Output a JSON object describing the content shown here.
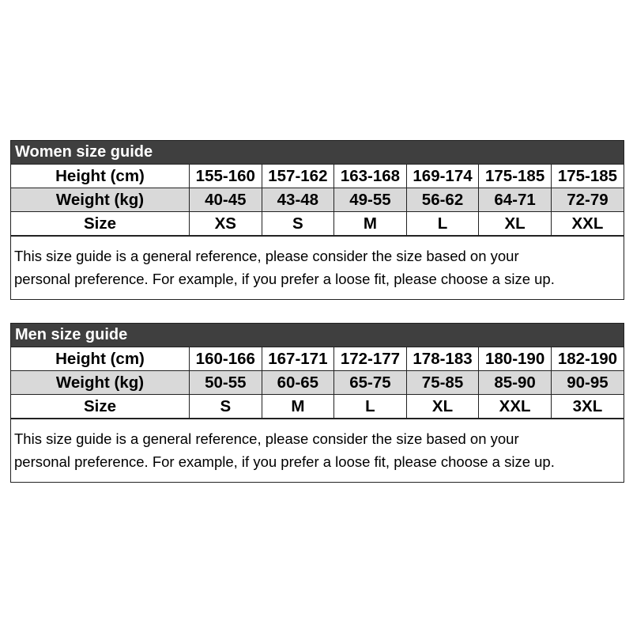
{
  "women": {
    "title": "Women size guide",
    "rows": [
      {
        "label": "Height (cm)",
        "values": [
          "155-160",
          "157-162",
          "163-168",
          "169-174",
          "175-185",
          "175-185"
        ]
      },
      {
        "label": "Weight (kg)",
        "values": [
          "40-45",
          "43-48",
          "49-55",
          "56-62",
          "64-71",
          "72-79"
        ]
      },
      {
        "label": "Size",
        "values": [
          "XS",
          "S",
          "M",
          "L",
          "XL",
          "XXL"
        ]
      }
    ],
    "note_line1": "This size guide is a general reference, please consider the size based on your",
    "note_line2": "personal preference. For example, if you prefer a loose fit,  please choose a size up."
  },
  "men": {
    "title": "Men size guide",
    "rows": [
      {
        "label": "Height (cm)",
        "values": [
          "160-166",
          "167-171",
          "172-177",
          "178-183",
          "180-190",
          "182-190"
        ]
      },
      {
        "label": "Weight (kg)",
        "values": [
          "50-55",
          "60-65",
          "65-75",
          "75-85",
          "85-90",
          "90-95"
        ]
      },
      {
        "label": "Size",
        "values": [
          "S",
          "M",
          "L",
          "XL",
          "XXL",
          "3XL"
        ]
      }
    ],
    "note_line1": "This size guide is a general reference, please consider the size based on your",
    "note_line2": "personal preference. For example, if you prefer a loose fit,  please choose a size up."
  },
  "colors": {
    "header_bg": "#3f3f3f",
    "weight_row_bg": "#d9d9d9"
  }
}
